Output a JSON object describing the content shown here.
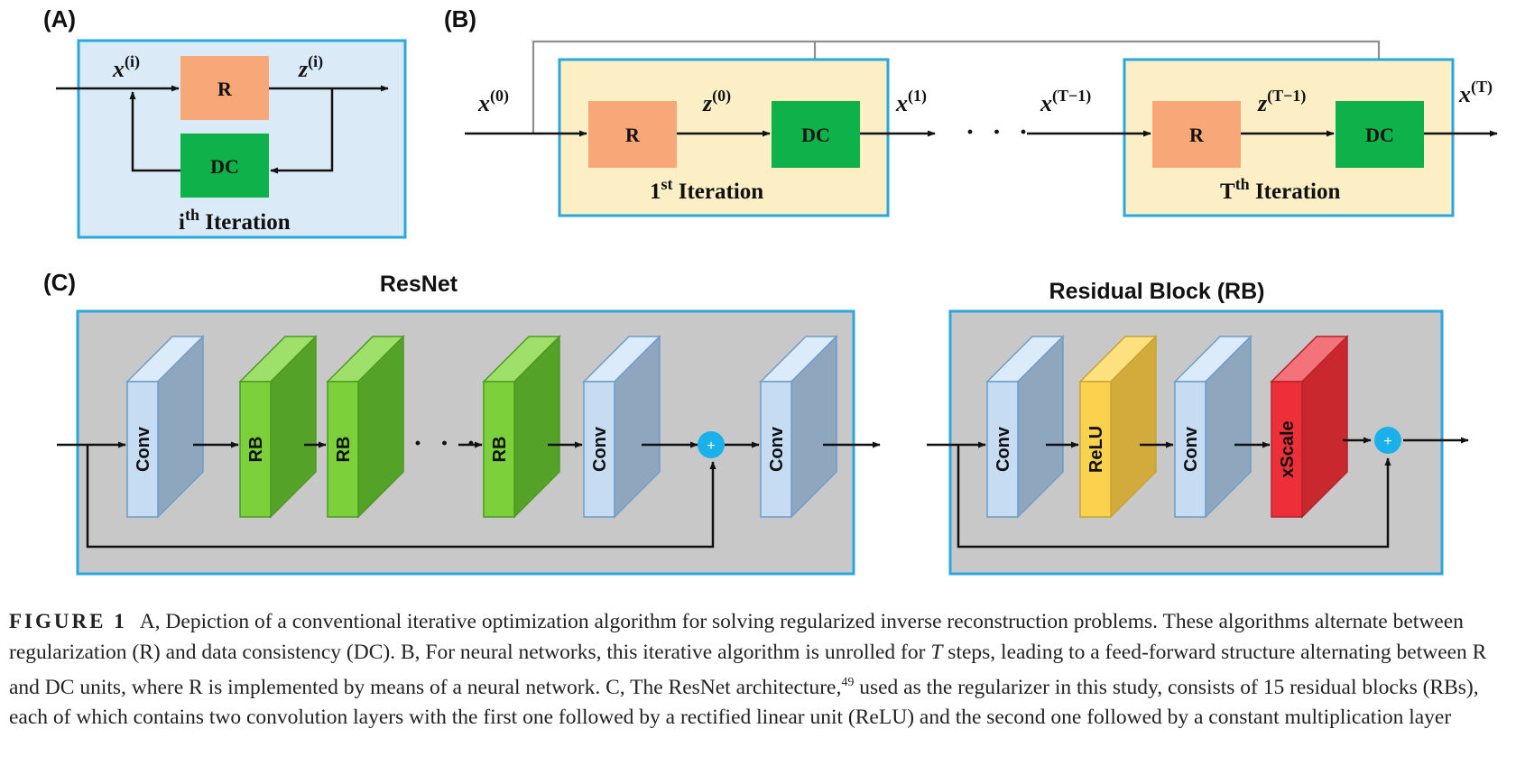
{
  "panel_a": {
    "letter": "(A)",
    "input_var": "x",
    "input_sup": "(i)",
    "output_var": "z",
    "output_sup": "(i)",
    "r_label": "R",
    "dc_label": "DC",
    "iteration_prefix": "i",
    "iteration_sup": "th",
    "iteration_suffix": " Iteration"
  },
  "panel_b": {
    "letter": "(B)",
    "x0_var": "x",
    "x0_sup": "(0)",
    "z0_var": "z",
    "z0_sup": "(0)",
    "x1_var": "x",
    "x1_sup": "(1)",
    "xT1_var": "x",
    "xT1_sup": "(T−1)",
    "zT1_var": "z",
    "zT1_sup": "(T−1)",
    "xT_var": "x",
    "xT_sup": "(T)",
    "r_label": "R",
    "dc_label": "DC",
    "dots": "· · ·",
    "iter1_prefix": "1",
    "iter1_sup": "st",
    "iter1_suffix": " Iteration",
    "iterT_prefix": "T",
    "iterT_sup": "th",
    "iterT_suffix": " Iteration"
  },
  "panel_c": {
    "letter": "(C)",
    "resnet_title": "ResNet",
    "rb_title": "Residual Block (RB)",
    "resnet_blocks": [
      "Conv",
      "RB",
      "RB",
      "RB",
      "Conv",
      "Conv"
    ],
    "rb_blocks": [
      "Conv",
      "ReLU",
      "Conv",
      "xScale"
    ],
    "dots": "· · ·",
    "plus": "+"
  },
  "colors": {
    "panel_blue_bg": "#dbeaf7",
    "panel_border": "#2aa7dc",
    "iter_bg": "#fcefc6",
    "r_box": "#f8a878",
    "dc_box": "#0fb14a",
    "conv_front": "#c6dcf2",
    "rb_front": "#7cd03a",
    "relu_front": "#fbd24d",
    "xscale_front": "#ee2f3a",
    "adder": "#1ab0ea",
    "panel_gray_bg": "#c9c8c8"
  },
  "caption": {
    "figure_label": "FIGURE 1",
    "text_1": "A, Depiction of a conventional iterative optimization algorithm for solving regularized inverse reconstruction problems. These algorithms alternate between regularization (R) and data consistency (DC). B, For neural networks, this iterative algorithm is unrolled for ",
    "text_t": "T",
    "text_2": " steps, leading to a feed-forward structure alternating between R and DC units, where R is implemented by means of a neural network. C, The ResNet architecture,",
    "ref": "49",
    "text_3": " used as the regularizer in this study, consists of 15 residual blocks (RBs), each of which contains two convolution layers with the first one followed by a rectified linear unit (ReLU) and the second one followed by a constant multiplication layer"
  }
}
